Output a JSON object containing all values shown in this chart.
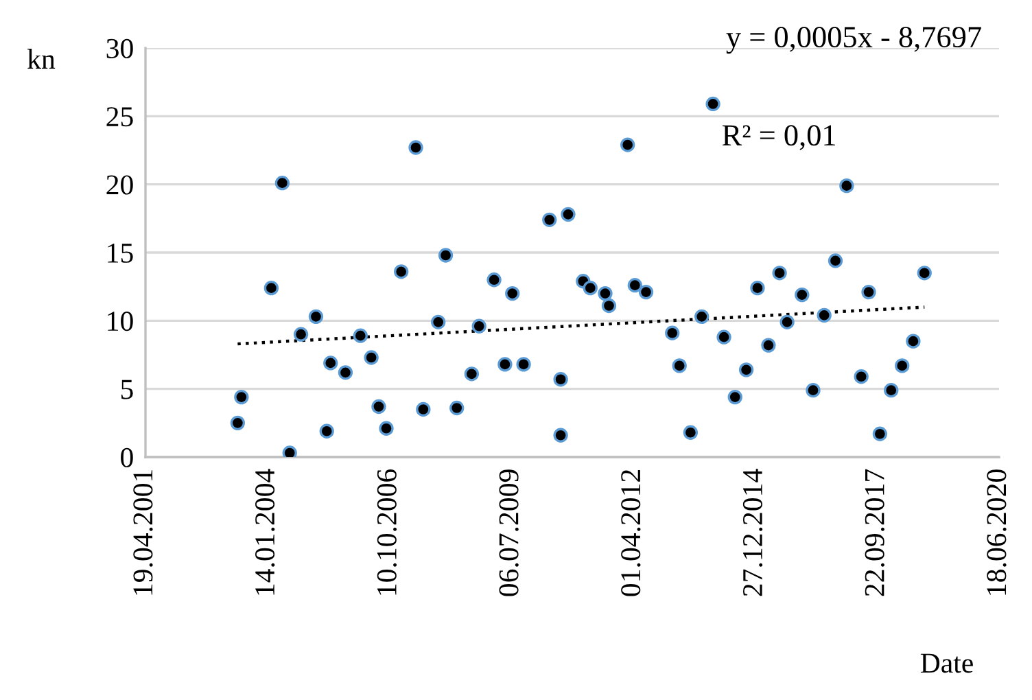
{
  "chart_data": {
    "type": "scatter",
    "xlabel": "Date",
    "ylabel": "kn",
    "annotations": [
      "y = 0,0005x - 8,7697",
      "R² = 0,01"
    ],
    "x": [
      "2003-05",
      "2003-06",
      "2004-02",
      "2004-05",
      "2004-07",
      "2004-10",
      "2005-02",
      "2005-05",
      "2005-06",
      "2005-10",
      "2006-02",
      "2006-05",
      "2006-07",
      "2006-09",
      "2007-01",
      "2007-05",
      "2007-07",
      "2007-11",
      "2008-01",
      "2008-04",
      "2008-08",
      "2008-10",
      "2009-02",
      "2009-05",
      "2009-07",
      "2009-10",
      "2010-05",
      "2010-08",
      "2010-08",
      "2010-10",
      "2011-02",
      "2011-04",
      "2011-08",
      "2011-09",
      "2012-02",
      "2012-04",
      "2012-07",
      "2013-02",
      "2013-04",
      "2013-07",
      "2013-10",
      "2014-01",
      "2014-04",
      "2014-07",
      "2014-10",
      "2015-01",
      "2015-04",
      "2015-07",
      "2015-09",
      "2016-01",
      "2016-04",
      "2016-07",
      "2016-10",
      "2017-01",
      "2017-05",
      "2017-07",
      "2017-10",
      "2018-01",
      "2018-04",
      "2018-07",
      "2018-10"
    ],
    "series": [
      {
        "color": "#000000",
        "marker": "circle",
        "values": [
          2.5,
          4.4,
          12.4,
          20.1,
          0.3,
          9.0,
          10.3,
          1.9,
          6.9,
          6.2,
          8.9,
          7.3,
          3.7,
          2.1,
          13.6,
          22.7,
          3.5,
          9.9,
          14.8,
          3.6,
          6.1,
          9.6,
          13.0,
          6.8,
          12.0,
          6.8,
          17.4,
          5.7,
          1.6,
          17.8,
          12.9,
          12.4,
          12.0,
          11.1,
          22.9,
          12.6,
          12.1,
          9.1,
          6.7,
          1.8,
          10.3,
          25.9,
          8.8,
          4.4,
          6.4,
          12.4,
          8.2,
          13.5,
          9.9,
          11.9,
          4.9,
          10.4,
          14.4,
          19.9,
          5.9,
          12.1,
          1.7,
          4.9,
          6.7,
          8.5,
          13.5
        ]
      },
      {
        "type": "line",
        "color": "#000000",
        "line_style": "dotted",
        "marker": "none",
        "x": [
          "2003-05",
          "2018-10"
        ],
        "values": [
          8.3,
          11.0
        ]
      }
    ],
    "xlim": [
      "2001-04-19",
      "2020-06-18"
    ],
    "xticks": [
      {
        "value": "2001-04-19",
        "label": "19.04.2001"
      },
      {
        "value": "2004-01-14",
        "label": "14.01.2004"
      },
      {
        "value": "2006-10-10",
        "label": "10.10.2006"
      },
      {
        "value": "2009-07-06",
        "label": "06.07.2009"
      },
      {
        "value": "2012-04-01",
        "label": "01.04.2012"
      },
      {
        "value": "2014-12-27",
        "label": "27.12.2014"
      },
      {
        "value": "2017-09-22",
        "label": "22.09.2017"
      },
      {
        "value": "2020-06-18",
        "label": "18.06.2020"
      }
    ],
    "ylim": [
      0,
      30
    ],
    "yticks": [
      0,
      5,
      10,
      15,
      20,
      25,
      30
    ],
    "grid": "y",
    "legend": false
  }
}
